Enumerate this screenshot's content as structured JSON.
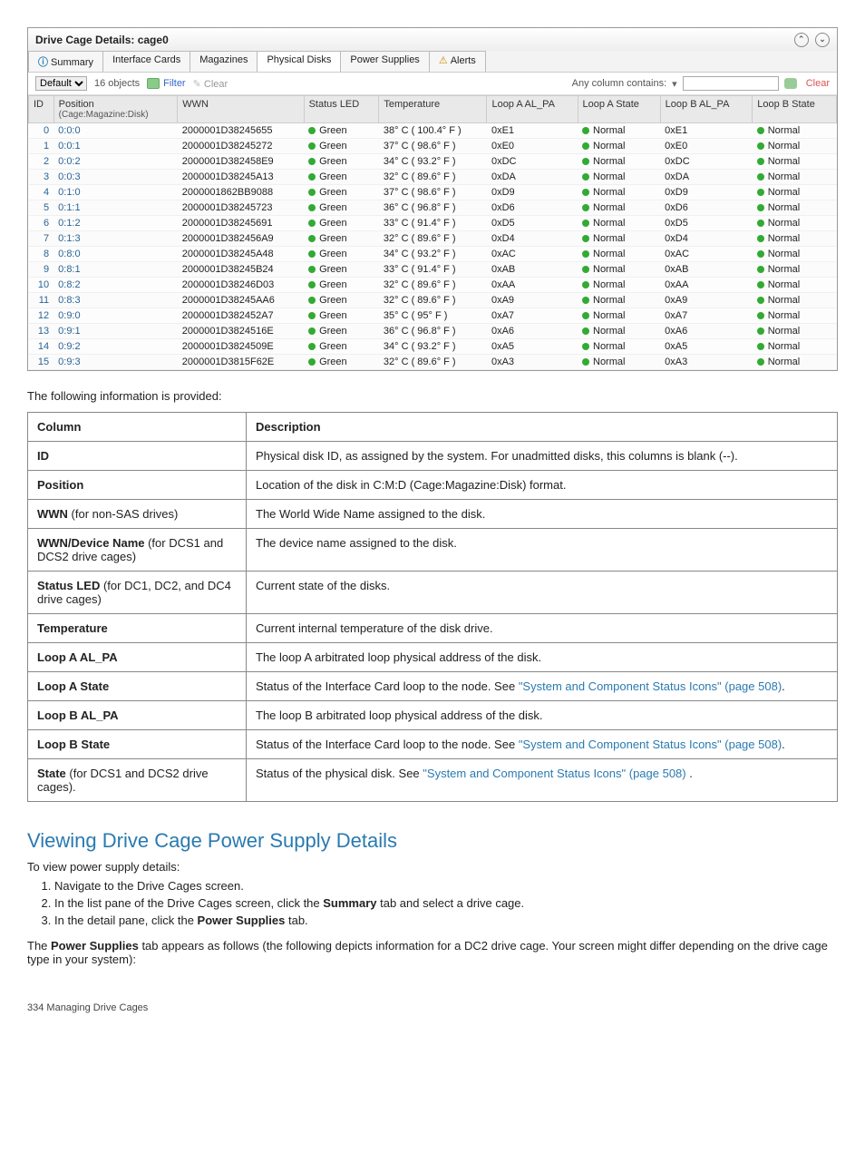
{
  "window": {
    "title": "Drive Cage Details: cage0"
  },
  "tabs": [
    {
      "label": "Summary",
      "icon": "info"
    },
    {
      "label": "Interface Cards"
    },
    {
      "label": "Magazines"
    },
    {
      "label": "Physical Disks",
      "active": true
    },
    {
      "label": "Power Supplies"
    },
    {
      "label": "Alerts",
      "icon": "warn"
    }
  ],
  "filterbar": {
    "view": "Default",
    "count": "16 objects",
    "filter": "Filter",
    "clear": "Clear",
    "anycol": "Any column contains:",
    "clearlink": "Clear"
  },
  "columns": {
    "id": "ID",
    "position": "Position",
    "position_sub": "(Cage:Magazine:Disk)",
    "wwn": "WWN",
    "statusled": "Status LED",
    "temp": "Temperature",
    "loopa_al": "Loop A AL_PA",
    "loopa_state": "Loop A State",
    "loopb_al": "Loop B AL_PA",
    "loopb_state": "Loop B State"
  },
  "status_green_label": "Green",
  "state_normal_label": "Normal",
  "rows": [
    {
      "id": "0",
      "pos": "0:0:0",
      "wwn": "2000001D38245655",
      "stat": "Green",
      "temp": "38° C ( 100.4° F )",
      "la": "0xE1",
      "las": "Normal",
      "lb": "0xE1",
      "lbs": "Normal"
    },
    {
      "id": "1",
      "pos": "0:0:1",
      "wwn": "2000001D38245272",
      "stat": "Green",
      "temp": "37° C ( 98.6° F )",
      "la": "0xE0",
      "las": "Normal",
      "lb": "0xE0",
      "lbs": "Normal"
    },
    {
      "id": "2",
      "pos": "0:0:2",
      "wwn": "2000001D382458E9",
      "stat": "Green",
      "temp": "34° C ( 93.2° F )",
      "la": "0xDC",
      "las": "Normal",
      "lb": "0xDC",
      "lbs": "Normal"
    },
    {
      "id": "3",
      "pos": "0:0:3",
      "wwn": "2000001D38245A13",
      "stat": "Green",
      "temp": "32° C ( 89.6° F )",
      "la": "0xDA",
      "las": "Normal",
      "lb": "0xDA",
      "lbs": "Normal"
    },
    {
      "id": "4",
      "pos": "0:1:0",
      "wwn": "2000001862BB9088",
      "stat": "Green",
      "temp": "37° C ( 98.6° F )",
      "la": "0xD9",
      "las": "Normal",
      "lb": "0xD9",
      "lbs": "Normal"
    },
    {
      "id": "5",
      "pos": "0:1:1",
      "wwn": "2000001D38245723",
      "stat": "Green",
      "temp": "36° C ( 96.8° F )",
      "la": "0xD6",
      "las": "Normal",
      "lb": "0xD6",
      "lbs": "Normal"
    },
    {
      "id": "6",
      "pos": "0:1:2",
      "wwn": "2000001D38245691",
      "stat": "Green",
      "temp": "33° C ( 91.4° F )",
      "la": "0xD5",
      "las": "Normal",
      "lb": "0xD5",
      "lbs": "Normal"
    },
    {
      "id": "7",
      "pos": "0:1:3",
      "wwn": "2000001D382456A9",
      "stat": "Green",
      "temp": "32° C ( 89.6° F )",
      "la": "0xD4",
      "las": "Normal",
      "lb": "0xD4",
      "lbs": "Normal"
    },
    {
      "id": "8",
      "pos": "0:8:0",
      "wwn": "2000001D38245A48",
      "stat": "Green",
      "temp": "34° C ( 93.2° F )",
      "la": "0xAC",
      "las": "Normal",
      "lb": "0xAC",
      "lbs": "Normal"
    },
    {
      "id": "9",
      "pos": "0:8:1",
      "wwn": "2000001D38245B24",
      "stat": "Green",
      "temp": "33° C ( 91.4° F )",
      "la": "0xAB",
      "las": "Normal",
      "lb": "0xAB",
      "lbs": "Normal"
    },
    {
      "id": "10",
      "pos": "0:8:2",
      "wwn": "2000001D38246D03",
      "stat": "Green",
      "temp": "32° C ( 89.6° F )",
      "la": "0xAA",
      "las": "Normal",
      "lb": "0xAA",
      "lbs": "Normal"
    },
    {
      "id": "11",
      "pos": "0:8:3",
      "wwn": "2000001D38245AA6",
      "stat": "Green",
      "temp": "32° C ( 89.6° F )",
      "la": "0xA9",
      "las": "Normal",
      "lb": "0xA9",
      "lbs": "Normal"
    },
    {
      "id": "12",
      "pos": "0:9:0",
      "wwn": "2000001D382452A7",
      "stat": "Green",
      "temp": "35° C ( 95° F )",
      "la": "0xA7",
      "las": "Normal",
      "lb": "0xA7",
      "lbs": "Normal"
    },
    {
      "id": "13",
      "pos": "0:9:1",
      "wwn": "2000001D3824516E",
      "stat": "Green",
      "temp": "36° C ( 96.8° F )",
      "la": "0xA6",
      "las": "Normal",
      "lb": "0xA6",
      "lbs": "Normal"
    },
    {
      "id": "14",
      "pos": "0:9:2",
      "wwn": "2000001D3824509E",
      "stat": "Green",
      "temp": "34° C ( 93.2° F )",
      "la": "0xA5",
      "las": "Normal",
      "lb": "0xA5",
      "lbs": "Normal"
    },
    {
      "id": "15",
      "pos": "0:9:3",
      "wwn": "2000001D3815F62E",
      "stat": "Green",
      "temp": "32° C ( 89.6° F )",
      "la": "0xA3",
      "las": "Normal",
      "lb": "0xA3",
      "lbs": "Normal"
    }
  ],
  "intro": "The following information is provided:",
  "desc_headers": {
    "col": "Column",
    "desc": "Description"
  },
  "desc_rows": [
    {
      "c": "ID",
      "d": "Physical disk ID, as assigned by the system. For unadmitted disks, this columns is blank (--)."
    },
    {
      "c": "Position",
      "d": "Location of the disk in C:M:D (Cage:Magazine:Disk) format."
    },
    {
      "c": "WWN",
      "suffix": " (for non-SAS drives)",
      "d": "The World Wide Name assigned to the disk."
    },
    {
      "c": "WWN/Device Name",
      "suffix": " (for DCS1 and DCS2 drive cages)",
      "d": "The device name assigned to the disk."
    },
    {
      "c": "Status LED",
      "suffix": " (for DC1, DC2, and DC4 drive cages)",
      "d": "Current state of the disks."
    },
    {
      "c": "Temperature",
      "d": "Current internal temperature of the disk drive."
    },
    {
      "c": "Loop A AL_PA",
      "d": "The loop A arbitrated loop physical address of the disk."
    },
    {
      "c": "Loop A State",
      "d": "Status of the Interface Card loop to the node. See ",
      "link": "\"System and Component Status Icons\" (page 508)",
      "tail": "."
    },
    {
      "c": "Loop B AL_PA",
      "d": "The loop B arbitrated loop physical address of the disk."
    },
    {
      "c": "Loop B State",
      "d": "Status of the Interface Card loop to the node. See ",
      "link": "\"System and Component Status Icons\" (page 508)",
      "tail": "."
    },
    {
      "c": "State",
      "suffix": " (for DCS1 and DCS2 drive cages).",
      "d": "Status of the physical disk. See ",
      "link": "\"System and Component Status Icons\" (page 508)",
      "tail": " ."
    }
  ],
  "section_heading": "Viewing Drive Cage Power Supply Details",
  "steps_intro": "To view power supply details:",
  "steps": [
    "Navigate to the Drive Cages screen.",
    "In the list pane of the Drive Cages screen, click the <b>Summary</b> tab and select a drive cage.",
    "In the detail pane, click the <b>Power Supplies</b> tab."
  ],
  "after_steps": "The <b>Power Supplies</b> tab appears as follows (the following depicts information for a DC2 drive cage. Your screen might differ depending on the drive cage type in your system):",
  "footer": "334   Managing Drive Cages"
}
